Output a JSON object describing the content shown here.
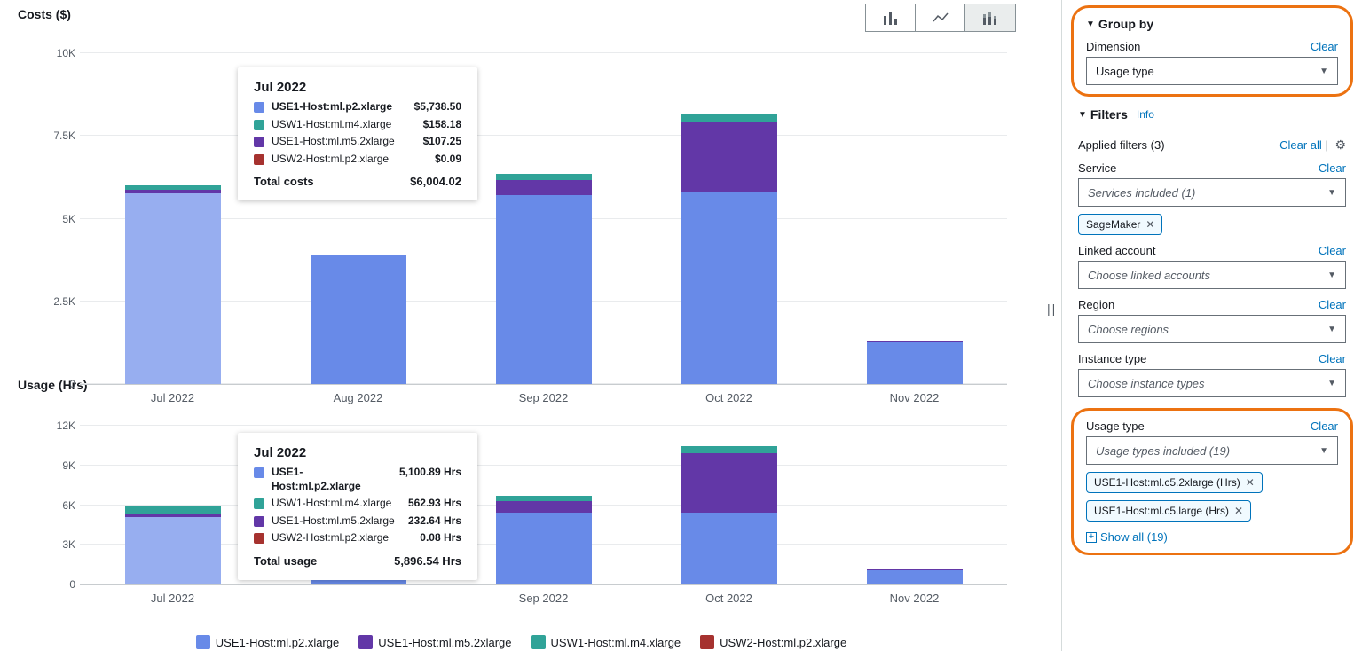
{
  "colors": {
    "series_use1_p2": "#688ae8",
    "series_use1_p2_faded": "#97aef0",
    "series_use1_m5": "#6237a7",
    "series_usw1_m4": "#30a398",
    "series_usw2_p2": "#a6322f",
    "grid": "#e9ebed",
    "text_muted": "#545b64",
    "link": "#0073bb",
    "highlight_border": "#ec7211"
  },
  "chart_controls": {
    "active_index": 2
  },
  "costs_chart": {
    "title": "Costs ($)",
    "y_ticks": [
      "0",
      "2.5K",
      "5K",
      "7.5K",
      "10K"
    ],
    "y_max": 10000,
    "categories": [
      "Jul 2022",
      "Aug 2022",
      "Sep 2022",
      "Oct 2022",
      "Nov 2022"
    ],
    "highlighted_index": 0,
    "stacks": [
      [
        {
          "s": 0,
          "v": 5738
        },
        {
          "s": 2,
          "v": 107
        },
        {
          "s": 1,
          "v": 158
        }
      ],
      [
        {
          "s": 0,
          "v": 3900
        }
      ],
      [
        {
          "s": 0,
          "v": 5700
        },
        {
          "s": 2,
          "v": 450
        },
        {
          "s": 1,
          "v": 180
        }
      ],
      [
        {
          "s": 0,
          "v": 5800
        },
        {
          "s": 2,
          "v": 2100
        },
        {
          "s": 1,
          "v": 250
        }
      ],
      [
        {
          "s": 0,
          "v": 1250
        },
        {
          "s": 2,
          "v": 30
        },
        {
          "s": 1,
          "v": 40
        }
      ]
    ],
    "tooltip": {
      "title": "Jul 2022",
      "rows": [
        {
          "color_key": "series_use1_p2",
          "label": "USE1-Host:ml.p2.xlarge",
          "value": "$5,738.50",
          "bold": true
        },
        {
          "color_key": "series_usw1_m4",
          "label": "USW1-Host:ml.m4.xlarge",
          "value": "$158.18",
          "bold": false
        },
        {
          "color_key": "series_use1_m5",
          "label": "USE1-Host:ml.m5.2xlarge",
          "value": "$107.25",
          "bold": false
        },
        {
          "color_key": "series_usw2_p2",
          "label": "USW2-Host:ml.p2.xlarge",
          "value": "$0.09",
          "bold": false
        }
      ],
      "total_label": "Total costs",
      "total_value": "$6,004.02"
    }
  },
  "usage_chart": {
    "title": "Usage (Hrs)",
    "y_ticks": [
      "0",
      "3K",
      "6K",
      "9K",
      "12K"
    ],
    "y_max": 12000,
    "categories": [
      "Jul 2022",
      "",
      "Sep 2022",
      "Oct 2022",
      "Nov 2022"
    ],
    "highlighted_index": 0,
    "stacks": [
      [
        {
          "s": 0,
          "v": 5100
        },
        {
          "s": 2,
          "v": 233
        },
        {
          "s": 1,
          "v": 563
        }
      ],
      [
        {
          "s": 0,
          "v": 5400
        }
      ],
      [
        {
          "s": 0,
          "v": 5400
        },
        {
          "s": 2,
          "v": 900
        },
        {
          "s": 1,
          "v": 350
        }
      ],
      [
        {
          "s": 0,
          "v": 5400
        },
        {
          "s": 2,
          "v": 4500
        },
        {
          "s": 1,
          "v": 500
        }
      ],
      [
        {
          "s": 0,
          "v": 1100
        },
        {
          "s": 2,
          "v": 60
        },
        {
          "s": 1,
          "v": 70
        }
      ]
    ],
    "tooltip": {
      "title": "Jul 2022",
      "rows": [
        {
          "color_key": "series_use1_p2",
          "label": "USE1-Host:ml.p2.xlarge",
          "value": "5,100.89 Hrs",
          "bold": true
        },
        {
          "color_key": "series_usw1_m4",
          "label": "USW1-Host:ml.m4.xlarge",
          "value": "562.93 Hrs",
          "bold": false
        },
        {
          "color_key": "series_use1_m5",
          "label": "USE1-Host:ml.m5.2xlarge",
          "value": "232.64 Hrs",
          "bold": false
        },
        {
          "color_key": "series_usw2_p2",
          "label": "USW2-Host:ml.p2.xlarge",
          "value": "0.08 Hrs",
          "bold": false
        }
      ],
      "total_label": "Total usage",
      "total_value": "5,896.54 Hrs"
    }
  },
  "legend": [
    {
      "color_key": "series_use1_p2",
      "label": "USE1-Host:ml.p2.xlarge"
    },
    {
      "color_key": "series_use1_m5",
      "label": "USE1-Host:ml.m5.2xlarge"
    },
    {
      "color_key": "series_usw1_m4",
      "label": "USW1-Host:ml.m4.xlarge"
    },
    {
      "color_key": "series_usw2_p2",
      "label": "USW2-Host:ml.p2.xlarge"
    }
  ],
  "series_color_order": [
    "series_use1_p2",
    "series_usw1_m4",
    "series_use1_m5",
    "series_usw2_p2"
  ],
  "sidebar": {
    "group_by": {
      "title": "Group by",
      "dimension_label": "Dimension",
      "clear": "Clear",
      "value": "Usage type"
    },
    "filters": {
      "title": "Filters",
      "info": "Info",
      "applied_label": "Applied filters (3)",
      "clear_all": "Clear all",
      "sections": [
        {
          "key": "service",
          "label": "Service",
          "clear": "Clear",
          "placeholder": "Services included (1)",
          "italic": true,
          "chips": [
            "SageMaker"
          ]
        },
        {
          "key": "linked",
          "label": "Linked account",
          "clear": "Clear",
          "placeholder": "Choose linked accounts",
          "italic": true,
          "chips": []
        },
        {
          "key": "region",
          "label": "Region",
          "clear": "Clear",
          "placeholder": "Choose regions",
          "italic": true,
          "chips": []
        },
        {
          "key": "instance",
          "label": "Instance type",
          "clear": "Clear",
          "placeholder": "Choose instance types",
          "italic": true,
          "chips": []
        }
      ],
      "usage_type": {
        "label": "Usage type",
        "clear": "Clear",
        "placeholder": "Usage types included (19)",
        "chips": [
          "USE1-Host:ml.c5.2xlarge (Hrs)",
          "USE1-Host:ml.c5.large (Hrs)"
        ],
        "show_all": "Show all (19)"
      }
    }
  }
}
